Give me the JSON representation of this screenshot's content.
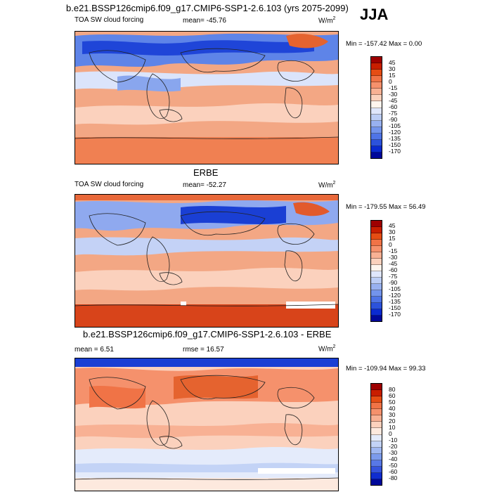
{
  "header": {
    "title": "b.e21.BSSP126cmip6.f09_g17.CMIP6-SSP1-2.6.103 (yrs 2075-2099)",
    "season": "JJA"
  },
  "panels": [
    {
      "variable": "TOA SW cloud forcing",
      "stat": "mean= -45.76",
      "units": "W/m",
      "units_sup": "2",
      "minmax": "Min = -157.42 Max =   0.00",
      "levels": [
        "45",
        "30",
        "15",
        "0",
        "-15",
        "-30",
        "-45",
        "-60",
        "-75",
        "-90",
        "-105",
        "-120",
        "-135",
        "-150",
        "-170"
      ],
      "colors": [
        "#9e0000",
        "#c81e00",
        "#e54d14",
        "#f07346",
        "#f5916c",
        "#f8b194",
        "#fbd1bd",
        "#fff5ee",
        "#dfe6fb",
        "#bccdf5",
        "#98b1f0",
        "#7394ec",
        "#4f74e6",
        "#2c52dc",
        "#0a2ad0",
        "#00089a"
      ]
    },
    {
      "title": "ERBE",
      "variable": "TOA SW cloud forcing",
      "stat": "mean= -52.27",
      "units": "W/m",
      "units_sup": "2",
      "minmax": "Min = -179.55 Max =  56.49",
      "levels": [
        "45",
        "30",
        "15",
        "0",
        "-15",
        "-30",
        "-45",
        "-60",
        "-75",
        "-90",
        "-105",
        "-120",
        "-135",
        "-150",
        "-170"
      ],
      "colors": [
        "#9e0000",
        "#c81e00",
        "#e54d14",
        "#f07346",
        "#f5916c",
        "#f8b194",
        "#fbd1bd",
        "#fff5ee",
        "#dfe6fb",
        "#bccdf5",
        "#98b1f0",
        "#7394ec",
        "#4f74e6",
        "#2c52dc",
        "#0a2ad0",
        "#00089a"
      ]
    },
    {
      "title": "b.e21.BSSP126cmip6.f09_g17.CMIP6-SSP1-2.6.103 - ERBE",
      "stat_left": "mean =   6.51",
      "stat": "rmse =  16.57",
      "units": "W/m",
      "units_sup": "2",
      "minmax": "Min = -109.94 Max =  99.33",
      "levels": [
        "80",
        "60",
        "50",
        "40",
        "30",
        "20",
        "10",
        "0",
        "-10",
        "-20",
        "-30",
        "-40",
        "-50",
        "-60",
        "-80"
      ],
      "colors": [
        "#9e0000",
        "#c81e00",
        "#e54d14",
        "#f07346",
        "#f5916c",
        "#f8b194",
        "#fbd1bd",
        "#fde9de",
        "#e4ebfb",
        "#c3d3f6",
        "#a0b8f1",
        "#7c9bec",
        "#5878e6",
        "#3553dc",
        "#0f2cd0",
        "#00089a"
      ]
    }
  ]
}
